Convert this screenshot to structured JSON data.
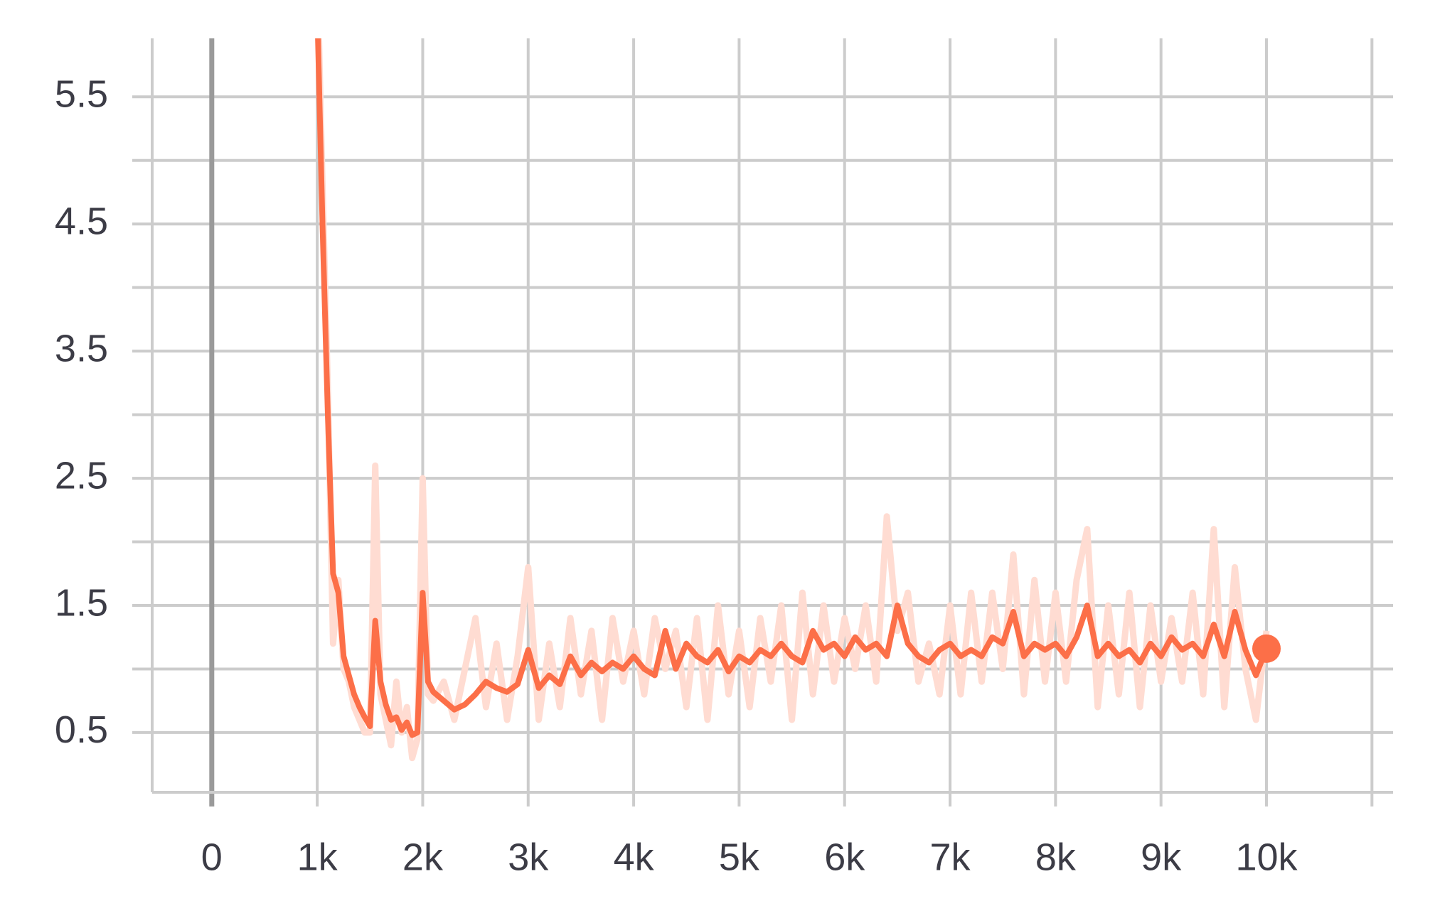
{
  "chart_data": {
    "type": "line",
    "x": [
      1000,
      1050,
      1100,
      1150,
      1200,
      1250,
      1300,
      1350,
      1400,
      1450,
      1500,
      1550,
      1600,
      1650,
      1700,
      1750,
      1800,
      1850,
      1900,
      1950,
      2000,
      2050,
      2100,
      2200,
      2300,
      2400,
      2500,
      2600,
      2700,
      2800,
      2900,
      3000,
      3100,
      3200,
      3300,
      3400,
      3500,
      3600,
      3700,
      3800,
      3900,
      4000,
      4100,
      4200,
      4300,
      4400,
      4500,
      4600,
      4700,
      4800,
      4900,
      5000,
      5100,
      5200,
      5300,
      5400,
      5500,
      5600,
      5700,
      5800,
      5900,
      6000,
      6100,
      6200,
      6300,
      6400,
      6500,
      6600,
      6700,
      6800,
      6900,
      7000,
      7100,
      7200,
      7300,
      7400,
      7500,
      7600,
      7700,
      7800,
      7900,
      8000,
      8100,
      8200,
      8300,
      8400,
      8500,
      8600,
      8700,
      8800,
      8900,
      9000,
      9100,
      9200,
      9300,
      9400,
      9500,
      9600,
      9700,
      9800,
      9900,
      10000
    ],
    "series": [
      {
        "color": "#ffdcd2",
        "values": [
          6.5,
          4.8,
          3.2,
          1.2,
          1.7,
          1.0,
          0.9,
          0.7,
          0.6,
          0.5,
          0.5,
          2.6,
          0.8,
          0.6,
          0.4,
          0.9,
          0.5,
          0.7,
          0.3,
          0.45,
          2.5,
          0.8,
          0.75,
          0.9,
          0.6,
          1.0,
          1.4,
          0.7,
          1.2,
          0.6,
          1.1,
          1.8,
          0.6,
          1.2,
          0.7,
          1.4,
          0.8,
          1.3,
          0.6,
          1.4,
          0.9,
          1.3,
          0.8,
          1.4,
          1.0,
          1.3,
          0.7,
          1.4,
          0.6,
          1.5,
          0.8,
          1.3,
          0.7,
          1.4,
          0.9,
          1.5,
          0.6,
          1.6,
          0.8,
          1.5,
          0.9,
          1.4,
          1.0,
          1.5,
          0.9,
          2.2,
          1.3,
          1.6,
          0.9,
          1.2,
          0.8,
          1.5,
          0.8,
          1.6,
          0.9,
          1.6,
          1.0,
          1.9,
          0.8,
          1.7,
          0.9,
          1.6,
          0.9,
          1.7,
          2.1,
          0.7,
          1.5,
          0.8,
          1.6,
          0.7,
          1.5,
          0.9,
          1.4,
          0.9,
          1.6,
          0.8,
          2.1,
          0.7,
          1.8,
          1.0,
          0.6,
          1.3
        ]
      },
      {
        "color": "#fc6f48",
        "values": [
          6.2,
          4.5,
          3.0,
          1.75,
          1.6,
          1.1,
          0.95,
          0.8,
          0.7,
          0.62,
          0.55,
          1.38,
          0.9,
          0.72,
          0.6,
          0.62,
          0.52,
          0.58,
          0.48,
          0.5,
          1.6,
          0.9,
          0.82,
          0.75,
          0.68,
          0.72,
          0.8,
          0.9,
          0.85,
          0.82,
          0.88,
          1.15,
          0.85,
          0.95,
          0.88,
          1.1,
          0.95,
          1.05,
          0.98,
          1.05,
          1.0,
          1.1,
          1.0,
          0.95,
          1.3,
          1.0,
          1.2,
          1.1,
          1.05,
          1.15,
          0.98,
          1.1,
          1.05,
          1.15,
          1.1,
          1.2,
          1.1,
          1.05,
          1.3,
          1.15,
          1.2,
          1.1,
          1.25,
          1.15,
          1.2,
          1.1,
          1.5,
          1.2,
          1.1,
          1.05,
          1.15,
          1.2,
          1.1,
          1.15,
          1.1,
          1.25,
          1.2,
          1.45,
          1.1,
          1.2,
          1.15,
          1.2,
          1.1,
          1.25,
          1.5,
          1.1,
          1.2,
          1.1,
          1.15,
          1.05,
          1.2,
          1.1,
          1.25,
          1.15,
          1.2,
          1.1,
          1.35,
          1.1,
          1.45,
          1.15,
          0.95,
          1.16
        ]
      }
    ],
    "xlim": [
      -565,
      11200
    ],
    "xticks": [
      0,
      {
        "value": 1000,
        "label": "1k"
      },
      {
        "value": 2000,
        "label": "2k"
      },
      {
        "value": 3000,
        "label": "3k"
      },
      {
        "value": 4000,
        "label": "4k"
      },
      {
        "value": 5000,
        "label": "5k"
      },
      {
        "value": 6000,
        "label": "6k"
      },
      {
        "value": 7000,
        "label": "7k"
      },
      {
        "value": 8000,
        "label": "8k"
      },
      {
        "value": 9000,
        "label": "9k"
      },
      {
        "value": 10000,
        "label": "10k"
      }
    ],
    "x_minor_ticks": [
      11000
    ],
    "ylim": [
      0.03,
      5.96
    ],
    "yticks": [
      0.5,
      1.5,
      2.5,
      3.5,
      4.5,
      5.5
    ],
    "y_minor_ticks": [
      1,
      2,
      3,
      4,
      5
    ],
    "grid": true
  }
}
